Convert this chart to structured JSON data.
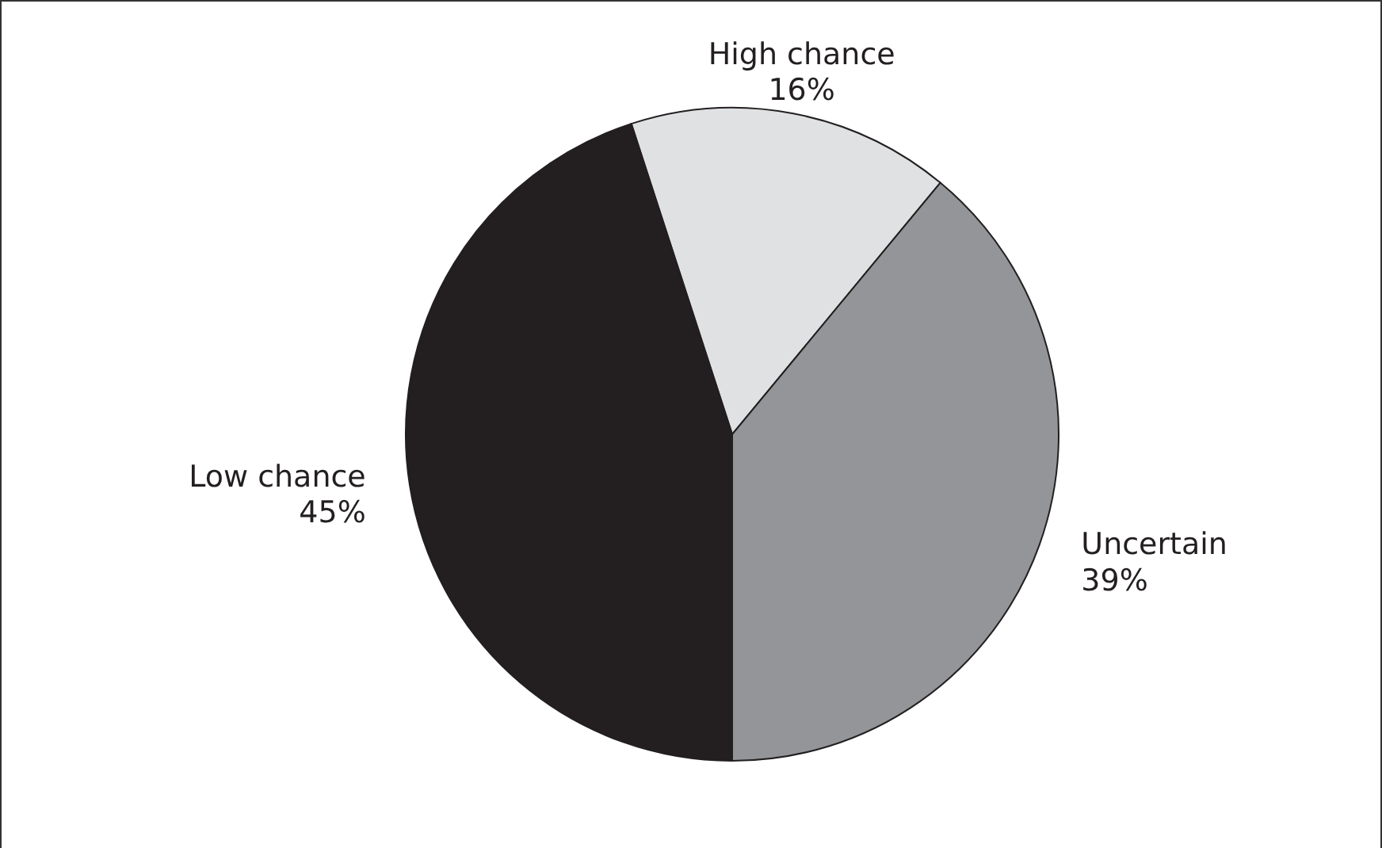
{
  "chart_data": {
    "type": "pie",
    "categories": [
      "High chance",
      "Uncertain",
      "Low chance"
    ],
    "values": [
      16,
      39,
      45
    ],
    "value_labels": [
      "16%",
      "39%",
      "45%"
    ],
    "colors": [
      "#e0e1e3",
      "#939598",
      "#231f20"
    ]
  }
}
